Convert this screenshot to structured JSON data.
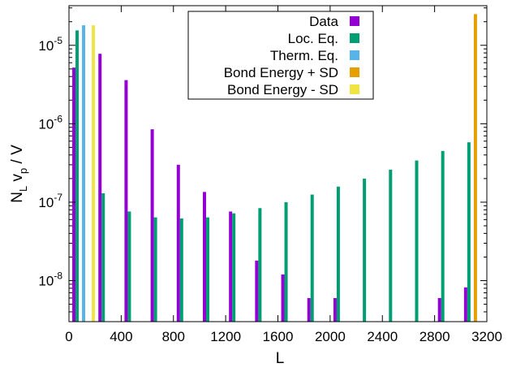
{
  "chart_data": {
    "type": "bar",
    "xlabel": "L",
    "ylabel_parts": [
      "N",
      "L",
      " v",
      "p",
      " / V"
    ],
    "x_range": [
      0,
      3200
    ],
    "y_range": [
      3e-09,
      3.2e-05
    ],
    "y_scale": "log",
    "grid": false,
    "legend_placement": "top-center",
    "x_ticks": [
      0,
      400,
      800,
      1200,
      1600,
      2000,
      2400,
      2800,
      3200
    ],
    "x_tick_labels": [
      "0",
      "400",
      "800",
      "1200",
      "1600",
      "2000",
      "2400",
      "2800",
      "3200"
    ],
    "y_ticks": [
      1e-08,
      1e-07,
      1e-06,
      1e-05
    ],
    "y_tick_labels": [
      {
        "base": "10",
        "exp": "-8"
      },
      {
        "base": "10",
        "exp": "-7"
      },
      {
        "base": "10",
        "exp": "-6"
      },
      {
        "base": "10",
        "exp": "-5"
      }
    ],
    "series": [
      {
        "name": "Data",
        "color": "#9400d3",
        "points": [
          [
            50,
            5.2e-06
          ],
          [
            250,
            7.8e-06
          ],
          [
            450,
            3.6e-06
          ],
          [
            650,
            8.5e-07
          ],
          [
            850,
            3e-07
          ],
          [
            1050,
            1.35e-07
          ],
          [
            1250,
            7.6e-08
          ],
          [
            1450,
            1.8e-08
          ],
          [
            1650,
            1.2e-08
          ],
          [
            1850,
            6e-09
          ],
          [
            2050,
            6e-09
          ],
          [
            2850,
            6e-09
          ],
          [
            3050,
            8.2e-09
          ]
        ]
      },
      {
        "name": "Loc. Eq.",
        "color": "#009e73",
        "points": [
          [
            50,
            1.55e-05
          ],
          [
            250,
            1.3e-07
          ],
          [
            450,
            7.6e-08
          ],
          [
            650,
            6.4e-08
          ],
          [
            850,
            6.2e-08
          ],
          [
            1050,
            6.4e-08
          ],
          [
            1250,
            7.2e-08
          ],
          [
            1450,
            8.4e-08
          ],
          [
            1650,
            1e-07
          ],
          [
            1850,
            1.25e-07
          ],
          [
            2050,
            1.58e-07
          ],
          [
            2250,
            2e-07
          ],
          [
            2450,
            2.6e-07
          ],
          [
            2650,
            3.4e-07
          ],
          [
            2850,
            4.5e-07
          ],
          [
            3050,
            5.8e-07
          ]
        ]
      },
      {
        "name": "Therm. Eq.",
        "color": "#56b4e9",
        "points": [
          [
            50,
            1.8e-05
          ]
        ]
      },
      {
        "name": "Bond Energy + SD",
        "color": "#e69f00",
        "points": [
          [
            3100,
            2.5e-05
          ]
        ]
      },
      {
        "name": "Bond Energy - SD",
        "color": "#f0e442",
        "points": [
          [
            50,
            1.8e-05
          ]
        ]
      }
    ]
  }
}
